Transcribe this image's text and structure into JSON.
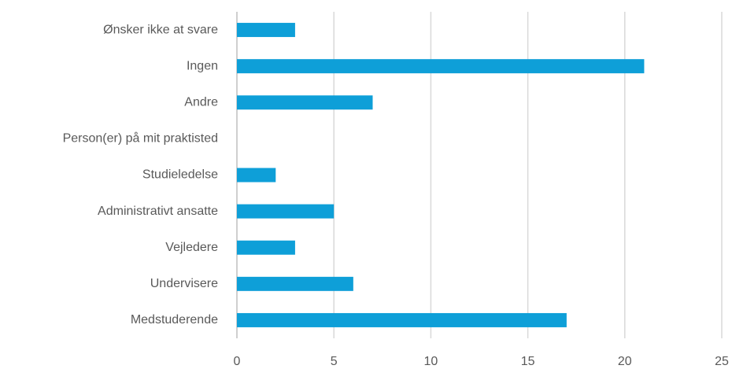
{
  "chart_data": {
    "type": "bar",
    "orientation": "horizontal",
    "categories": [
      "Ønsker ikke at svare",
      "Ingen",
      "Andre",
      "Person(er) på mit praktisted",
      "Studieledelse",
      "Administrativt ansatte",
      "Vejledere",
      "Undervisere",
      "Medstuderende"
    ],
    "values": [
      3,
      21,
      7,
      0,
      2,
      5,
      3,
      6,
      17
    ],
    "color": "#0e9fd8",
    "xlim": [
      0,
      25
    ],
    "xticks": [
      0,
      5,
      10,
      15,
      20,
      25
    ],
    "grid": true
  }
}
